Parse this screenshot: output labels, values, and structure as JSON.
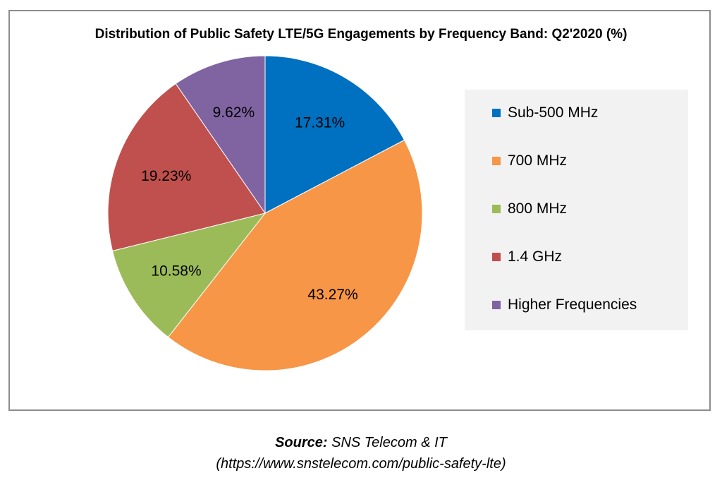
{
  "chart_data": {
    "type": "pie",
    "title": "Distribution of Public Safety LTE/5G Engagements by Frequency Band: Q2'2020 (%)",
    "slices": [
      {
        "label": "Sub-500 MHz",
        "value": 17.31,
        "display": "17.31%",
        "color": "#0070c0"
      },
      {
        "label": "700 MHz",
        "value": 43.27,
        "display": "43.27%",
        "color": "#f79646"
      },
      {
        "label": "800 MHz",
        "value": 10.58,
        "display": "10.58%",
        "color": "#9bbb59"
      },
      {
        "label": "1.4 GHz",
        "value": 19.23,
        "display": "19.23%",
        "color": "#c0504d"
      },
      {
        "label": "Higher Frequencies",
        "value": 9.62,
        "display": "9.62%",
        "color": "#8064a2"
      }
    ],
    "legend_position": "right"
  },
  "source": {
    "prefix": "Source:",
    "name": "SNS Telecom & IT",
    "url": "(https://www.snstelecom.com/public-safety-lte)"
  }
}
